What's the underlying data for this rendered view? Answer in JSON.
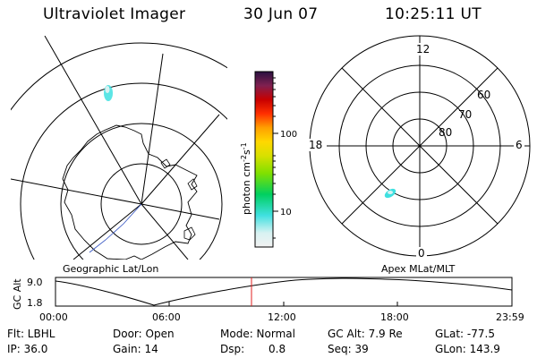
{
  "header": {
    "title": "Ultraviolet Imager",
    "date": "30 Jun 07",
    "time": "10:25:11 UT"
  },
  "left_panel": {
    "label": "Geographic Lat/Lon"
  },
  "right_panel": {
    "label": "Apex MLat/MLT",
    "mlt_labels": {
      "top": "12",
      "left": "18",
      "right": "6",
      "bottom": "0"
    },
    "lat_labels": [
      "60",
      "70",
      "80"
    ]
  },
  "colorbar": {
    "label": "photon cm",
    "superscript1": "-2",
    "s_text": "s",
    "superscript2": "-1",
    "ticks": [
      "100",
      "10"
    ],
    "colors": [
      "#f2f2f2",
      "#d8f2f2",
      "#40e0e0",
      "#00d060",
      "#80e000",
      "#d8e000",
      "#ffd800",
      "#ffa000",
      "#ff3000",
      "#c80000",
      "#802050",
      "#2a1040"
    ]
  },
  "timeline": {
    "axis_label": "GC Alt",
    "y_top": "9.0",
    "y_bottom": "1.8",
    "x_ticks": [
      "00:00",
      "06:00",
      "12:00",
      "18:00",
      "23:59"
    ]
  },
  "info": {
    "filter": "Flt: LBHL",
    "ip": "IP: 36.0",
    "door": "Door: Open",
    "gain": "Gain: 14",
    "mode": "Mode: Normal",
    "dsp_label": "Dsp:",
    "dsp_value": "0.8",
    "gc_alt": "GC Alt: 7.9 Re",
    "seq": "Seq: 39",
    "glat": "GLat: -77.5",
    "glon": "GLon: 143.9"
  }
}
